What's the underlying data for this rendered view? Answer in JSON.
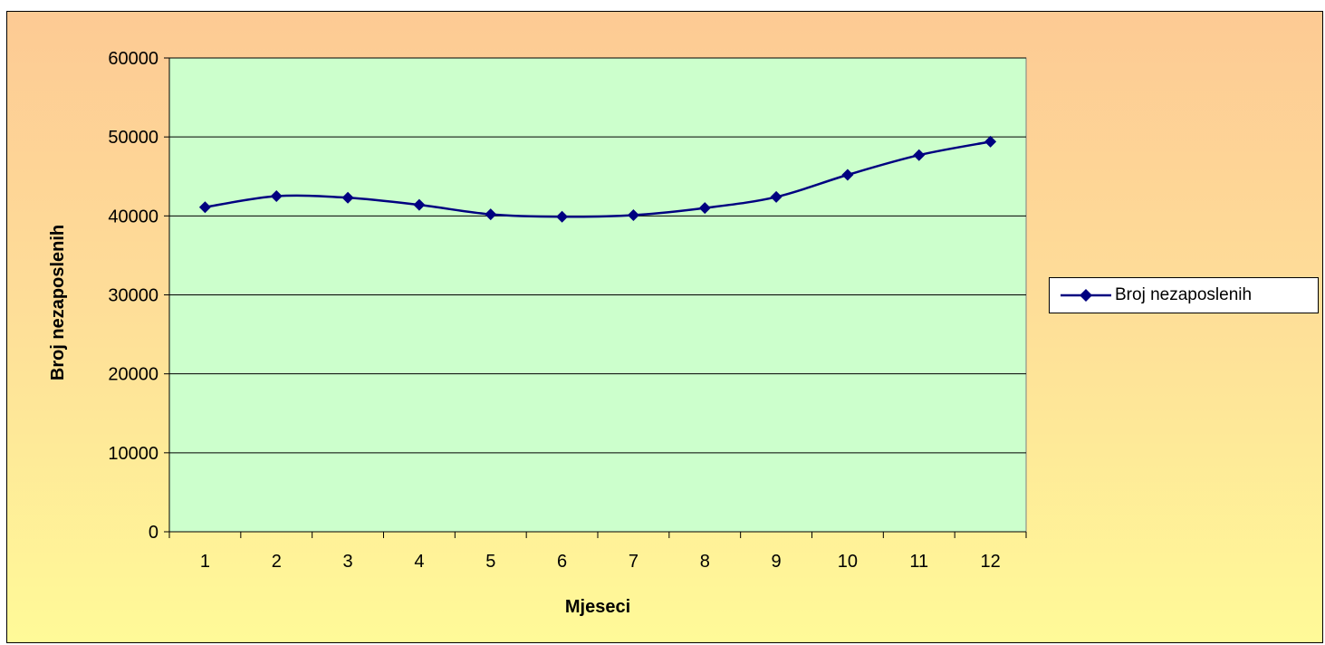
{
  "chart_data": {
    "type": "line",
    "title": "",
    "xlabel": "Mjeseci",
    "ylabel": "Broj nezaposlenih",
    "categories": [
      "1",
      "2",
      "3",
      "4",
      "5",
      "6",
      "7",
      "8",
      "9",
      "10",
      "11",
      "12"
    ],
    "series": [
      {
        "name": "Broj nezaposlenih",
        "values": [
          41100,
          42500,
          42300,
          41400,
          40200,
          39900,
          40100,
          41000,
          42400,
          45200,
          47700,
          49400
        ],
        "color": "#000080",
        "marker": "diamond"
      }
    ],
    "ylim": [
      0,
      60000
    ],
    "yticks": [
      "0",
      "10000",
      "20000",
      "30000",
      "40000",
      "50000",
      "60000"
    ],
    "grid": true,
    "legend_position": "right",
    "colors": {
      "plot_background": "#ccffcc",
      "outer_background_top": "#fdca94",
      "outer_background_bottom": "#fffa98",
      "gridline": "#000000",
      "line": "#000080"
    }
  }
}
